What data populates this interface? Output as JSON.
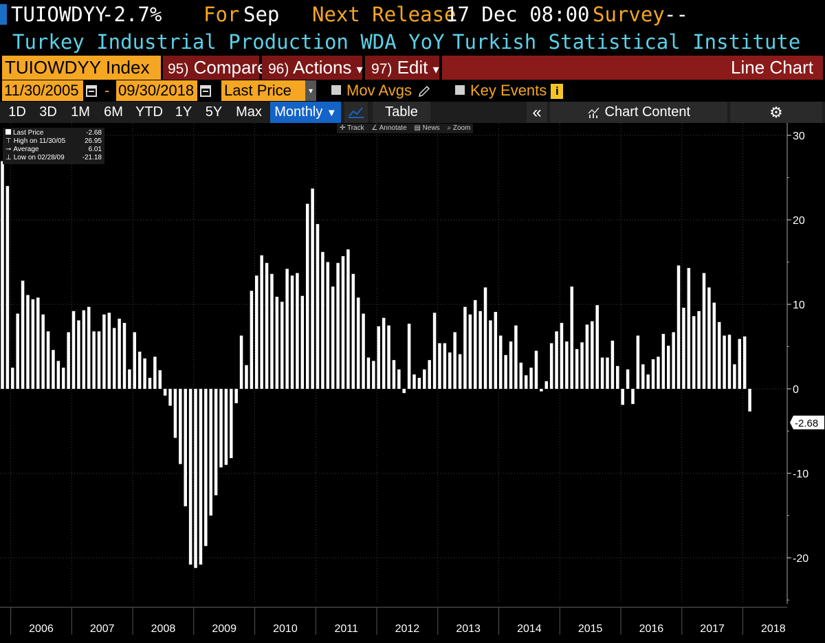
{
  "header": {
    "ticker": "TUIOWDYY",
    "change": "-2.7%",
    "for_label": "For",
    "for_value": "Sep",
    "next_release_label": "Next Release",
    "next_release_value": "17 Dec 08:00",
    "survey_label": "Survey",
    "survey_value": "--",
    "description": "Turkey Industrial Production WDA YoY",
    "source": "Turkish Statistical Institute"
  },
  "function_bar": {
    "security": "TUIOWDYY Index",
    "compare_num": "95)",
    "compare_label": "Compare",
    "actions_num": "96)",
    "actions_label": "Actions",
    "edit_num": "97)",
    "edit_label": "Edit",
    "view_label": "Line Chart"
  },
  "date_bar": {
    "start_date": "11/30/2005",
    "end_date": "09/30/2018",
    "separator": "-",
    "field": "Last Price",
    "mov_avgs": "Mov Avgs",
    "key_events": "Key Events"
  },
  "range_bar": {
    "buttons": [
      "1D",
      "3D",
      "1M",
      "6M",
      "YTD",
      "1Y",
      "5Y",
      "Max"
    ],
    "frequency": "Monthly",
    "table": "Table",
    "collapse": "«",
    "chart_content": "Chart Content"
  },
  "tools": [
    "Track",
    "Annotate",
    "News",
    "Zoom"
  ],
  "legend": {
    "rows": [
      {
        "label": "Last Price",
        "value": "-2.68"
      },
      {
        "label": "High on 11/30/05",
        "value": "26.95"
      },
      {
        "label": "Average",
        "value": "6.01"
      },
      {
        "label": "Low on 02/28/09",
        "value": "-21.18"
      }
    ]
  },
  "colors": {
    "amber": "#f5a623",
    "cyan": "#5ad1e8",
    "header_red": "#8b1a1a",
    "function_red": "#7d1717",
    "active_blue": "#1464c8",
    "bar": "#ffffff"
  },
  "chart_data": {
    "type": "bar",
    "ylim": [
      -26,
      31
    ],
    "yticks": [
      -20,
      -10,
      0,
      10,
      20,
      30
    ],
    "ytick_labels": [
      "-20",
      "-10",
      "0",
      "10",
      "20",
      "30"
    ],
    "last_value_label": "-2.68",
    "year_labels": [
      "2006",
      "2007",
      "2008",
      "2009",
      "2010",
      "2011",
      "2012",
      "2013",
      "2014",
      "2015",
      "2016",
      "2017",
      "2018"
    ],
    "grid": true,
    "months_start": "2005-11",
    "values": [
      26.95,
      24.0,
      2.5,
      8.9,
      12.8,
      11.1,
      10.6,
      10.8,
      8.8,
      6.8,
      4.6,
      3.3,
      2.5,
      6.7,
      9.2,
      8.1,
      9.3,
      9.7,
      6.8,
      6.8,
      8.8,
      9.0,
      7.2,
      8.3,
      7.8,
      2.3,
      6.7,
      4.4,
      3.6,
      1.3,
      3.8,
      2.2,
      -0.8,
      -2.0,
      -5.8,
      -8.9,
      -13.9,
      -20.8,
      -21.2,
      -20.8,
      -18.6,
      -15.0,
      -12.6,
      -9.3,
      -9.0,
      -8.2,
      -1.7,
      6.3,
      2.8,
      11.6,
      13.4,
      15.8,
      14.9,
      13.6,
      10.9,
      10.3,
      14.2,
      13.4,
      13.7,
      11.0,
      21.9,
      23.7,
      19.5,
      16.2,
      15.0,
      12.1,
      14.9,
      15.7,
      16.5,
      13.6,
      10.8,
      8.9,
      3.7,
      3.3,
      7.4,
      8.4,
      7.5,
      3.4,
      2.3,
      -0.5,
      7.7,
      1.7,
      1.3,
      2.3,
      3.4,
      9.0,
      5.4,
      5.4,
      4.3,
      6.7,
      4.1,
      9.7,
      8.8,
      10.5,
      9.2,
      12.0,
      8.1,
      9.1,
      6.3,
      4.0,
      5.6,
      7.5,
      3.1,
      1.6,
      2.5,
      4.5,
      -0.3,
      0.9,
      5.4,
      6.8,
      7.8,
      5.6,
      12.1,
      4.7,
      5.5,
      7.6,
      8.0,
      9.9,
      3.7,
      3.7,
      5.7,
      2.7,
      -1.9,
      2.3,
      -1.8,
      6.3,
      2.9,
      1.7,
      3.5,
      3.8,
      6.5,
      5.1,
      6.7,
      14.6,
      9.6,
      14.3,
      8.6,
      9.2,
      13.7,
      12.0,
      10.2,
      7.9,
      6.3,
      6.4,
      2.9,
      5.9,
      6.2,
      -2.68
    ]
  }
}
